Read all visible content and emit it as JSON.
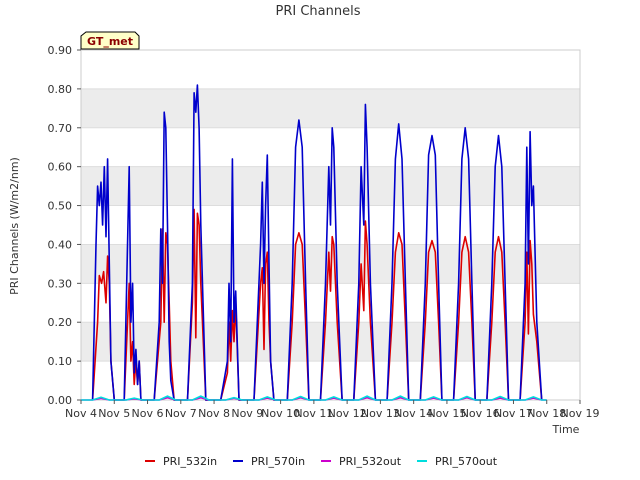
{
  "chart_data": {
    "type": "line",
    "title": "PRI Channels",
    "xlabel": "Time",
    "ylabel": "PRI Channels (W/m2/nm)",
    "badge": "GT_met",
    "ylim": [
      0,
      0.9
    ],
    "yticks": [
      0.0,
      0.1,
      0.2,
      0.3,
      0.4,
      0.5,
      0.6,
      0.7,
      0.8,
      0.9
    ],
    "ytick_labels": [
      "0.00",
      "0.10",
      "0.20",
      "0.30",
      "0.40",
      "0.50",
      "0.60",
      "0.70",
      "0.80",
      "0.90"
    ],
    "xlim": [
      4,
      19
    ],
    "xticks": [
      4,
      5,
      6,
      7,
      8,
      9,
      10,
      11,
      12,
      13,
      14,
      15,
      16,
      17,
      18,
      19
    ],
    "xtick_labels": [
      "Nov 4",
      "Nov 5",
      "Nov 6",
      "Nov 7",
      "Nov 8",
      "Nov 9",
      "Nov 10",
      "Nov 11",
      "Nov 12",
      "Nov 13",
      "Nov 14",
      "Nov 15",
      "Nov 16",
      "Nov 17",
      "Nov 18",
      "Nov 19"
    ],
    "grid": true,
    "legend_position": "bottom",
    "series": [
      {
        "name": "PRI_532in",
        "color": "#dd0000",
        "x": [
          4.35,
          4.5,
          4.55,
          4.62,
          4.68,
          4.75,
          4.8,
          4.85,
          4.9,
          5.0,
          5.3,
          5.45,
          5.5,
          5.55,
          5.6,
          5.65,
          5.7,
          5.75,
          5.8,
          6.2,
          6.4,
          6.45,
          6.5,
          6.55,
          6.6,
          6.65,
          6.7,
          6.8,
          7.2,
          7.35,
          7.4,
          7.45,
          7.5,
          7.55,
          7.6,
          7.75,
          8.2,
          8.4,
          8.45,
          8.5,
          8.55,
          8.6,
          8.65,
          8.75,
          9.2,
          9.4,
          9.45,
          9.5,
          9.55,
          9.6,
          9.65,
          9.7,
          9.8,
          10.2,
          10.35,
          10.45,
          10.55,
          10.65,
          10.75,
          10.85,
          11.2,
          11.35,
          11.45,
          11.5,
          11.55,
          11.6,
          11.7,
          11.85,
          12.2,
          12.35,
          12.42,
          12.5,
          12.55,
          12.6,
          12.7,
          12.85,
          13.2,
          13.35,
          13.45,
          13.55,
          13.65,
          13.75,
          13.85,
          14.2,
          14.35,
          14.45,
          14.55,
          14.65,
          14.75,
          14.85,
          15.2,
          15.35,
          15.45,
          15.55,
          15.65,
          15.75,
          15.85,
          16.2,
          16.35,
          16.45,
          16.55,
          16.65,
          16.75,
          16.85,
          17.2,
          17.35,
          17.4,
          17.45,
          17.5,
          17.55,
          17.6,
          17.7,
          17.85
        ],
        "y": [
          0,
          0.2,
          0.32,
          0.3,
          0.33,
          0.25,
          0.37,
          0.3,
          0.1,
          0,
          0,
          0.3,
          0.1,
          0.15,
          0.04,
          0.1,
          0.04,
          0.1,
          0,
          0,
          0.2,
          0.44,
          0.2,
          0.43,
          0.4,
          0.25,
          0.1,
          0,
          0,
          0.25,
          0.49,
          0.16,
          0.48,
          0.45,
          0.3,
          0,
          0,
          0.07,
          0.2,
          0.1,
          0.23,
          0.15,
          0.25,
          0,
          0,
          0.3,
          0.34,
          0.13,
          0.35,
          0.38,
          0.2,
          0.1,
          0,
          0,
          0.2,
          0.4,
          0.43,
          0.4,
          0.2,
          0,
          0,
          0.2,
          0.38,
          0.28,
          0.42,
          0.4,
          0.2,
          0,
          0,
          0.2,
          0.35,
          0.23,
          0.46,
          0.4,
          0.2,
          0,
          0,
          0.2,
          0.38,
          0.43,
          0.4,
          0.2,
          0,
          0,
          0.2,
          0.38,
          0.41,
          0.38,
          0.2,
          0,
          0,
          0.2,
          0.38,
          0.42,
          0.38,
          0.2,
          0,
          0,
          0.2,
          0.38,
          0.42,
          0.38,
          0.2,
          0,
          0,
          0.2,
          0.38,
          0.17,
          0.41,
          0.35,
          0.22,
          0.15,
          0
        ]
      },
      {
        "name": "PRI_570in",
        "color": "#0000cc",
        "x": [
          4.35,
          4.45,
          4.5,
          4.55,
          4.6,
          4.65,
          4.7,
          4.75,
          4.8,
          4.85,
          4.9,
          5.0,
          5.3,
          5.45,
          5.5,
          5.55,
          5.6,
          5.65,
          5.7,
          5.75,
          5.8,
          6.2,
          6.35,
          6.4,
          6.45,
          6.5,
          6.55,
          6.6,
          6.65,
          6.7,
          6.8,
          7.2,
          7.35,
          7.4,
          7.45,
          7.5,
          7.55,
          7.6,
          7.75,
          8.2,
          8.4,
          8.45,
          8.5,
          8.55,
          8.6,
          8.65,
          8.75,
          9.2,
          9.4,
          9.45,
          9.5,
          9.55,
          9.6,
          9.65,
          9.7,
          9.8,
          10.2,
          10.35,
          10.45,
          10.55,
          10.65,
          10.75,
          10.85,
          11.2,
          11.35,
          11.45,
          11.5,
          11.55,
          11.6,
          11.7,
          11.85,
          12.2,
          12.35,
          12.42,
          12.5,
          12.55,
          12.6,
          12.7,
          12.85,
          13.2,
          13.35,
          13.45,
          13.55,
          13.65,
          13.75,
          13.85,
          14.2,
          14.35,
          14.45,
          14.55,
          14.65,
          14.75,
          14.85,
          15.2,
          15.35,
          15.45,
          15.55,
          15.65,
          15.75,
          15.85,
          16.2,
          16.35,
          16.45,
          16.55,
          16.65,
          16.75,
          16.85,
          17.2,
          17.35,
          17.4,
          17.45,
          17.5,
          17.55,
          17.6,
          17.7,
          17.85
        ],
        "y": [
          0,
          0.4,
          0.55,
          0.5,
          0.56,
          0.45,
          0.6,
          0.42,
          0.62,
          0.35,
          0.1,
          0,
          0,
          0.6,
          0.2,
          0.3,
          0.07,
          0.13,
          0.04,
          0.1,
          0,
          0,
          0.2,
          0.44,
          0.3,
          0.74,
          0.7,
          0.45,
          0.15,
          0.05,
          0,
          0,
          0.3,
          0.79,
          0.74,
          0.81,
          0.7,
          0.45,
          0,
          0,
          0.1,
          0.3,
          0.15,
          0.62,
          0.2,
          0.28,
          0,
          0,
          0.4,
          0.56,
          0.3,
          0.5,
          0.63,
          0.35,
          0.1,
          0,
          0,
          0.3,
          0.65,
          0.72,
          0.65,
          0.3,
          0,
          0,
          0.3,
          0.6,
          0.45,
          0.7,
          0.65,
          0.3,
          0,
          0,
          0.3,
          0.6,
          0.45,
          0.76,
          0.65,
          0.3,
          0,
          0,
          0.3,
          0.62,
          0.71,
          0.62,
          0.3,
          0,
          0,
          0.3,
          0.63,
          0.68,
          0.63,
          0.3,
          0,
          0,
          0.3,
          0.62,
          0.7,
          0.62,
          0.3,
          0,
          0,
          0.3,
          0.6,
          0.68,
          0.6,
          0.3,
          0,
          0,
          0.3,
          0.65,
          0.35,
          0.69,
          0.5,
          0.55,
          0.2,
          0
        ]
      },
      {
        "name": "PRI_532out",
        "color": "#cc00cc",
        "x": [
          4.0,
          4.35,
          4.6,
          4.85,
          5.0,
          5.35,
          5.6,
          5.85,
          6.0,
          6.35,
          6.6,
          6.85,
          7.0,
          7.35,
          7.6,
          7.85,
          8.0,
          8.35,
          8.6,
          8.85,
          9.0,
          9.35,
          9.6,
          9.85,
          10.0,
          10.35,
          10.6,
          10.85,
          11.0,
          11.35,
          11.6,
          11.85,
          12.0,
          12.35,
          12.6,
          12.85,
          13.0,
          13.35,
          13.6,
          13.85,
          14.0,
          14.35,
          14.6,
          14.85,
          15.0,
          15.35,
          15.6,
          15.85,
          16.0,
          16.35,
          16.6,
          16.85,
          17.0,
          17.35,
          17.6,
          17.85,
          18.0
        ],
        "y": [
          0,
          0,
          0.004,
          0,
          0,
          0,
          0.003,
          0,
          0,
          0,
          0.006,
          0,
          0,
          0,
          0.006,
          0,
          0,
          0,
          0.004,
          0,
          0,
          0,
          0.005,
          0,
          0,
          0,
          0.006,
          0,
          0,
          0,
          0.005,
          0,
          0,
          0,
          0.006,
          0,
          0,
          0,
          0.006,
          0,
          0,
          0,
          0.005,
          0,
          0,
          0,
          0.006,
          0,
          0,
          0,
          0.005,
          0,
          0,
          0,
          0.005,
          0,
          0
        ]
      },
      {
        "name": "PRI_570out",
        "color": "#00dddd",
        "x": [
          4.0,
          4.35,
          4.6,
          4.85,
          5.0,
          5.35,
          5.6,
          5.85,
          6.0,
          6.35,
          6.6,
          6.85,
          7.0,
          7.35,
          7.6,
          7.85,
          8.0,
          8.35,
          8.6,
          8.85,
          9.0,
          9.35,
          9.6,
          9.85,
          10.0,
          10.35,
          10.6,
          10.85,
          11.0,
          11.35,
          11.6,
          11.85,
          12.0,
          12.35,
          12.6,
          12.85,
          13.0,
          13.35,
          13.6,
          13.85,
          14.0,
          14.35,
          14.6,
          14.85,
          15.0,
          15.35,
          15.6,
          15.85,
          16.0,
          16.35,
          16.6,
          16.85,
          17.0,
          17.35,
          17.6,
          17.85,
          18.0
        ],
        "y": [
          0,
          0,
          0.007,
          0,
          0,
          0,
          0.005,
          0,
          0,
          0,
          0.01,
          0,
          0,
          0,
          0.01,
          0,
          0,
          0,
          0.006,
          0,
          0,
          0,
          0.008,
          0,
          0,
          0,
          0.009,
          0,
          0,
          0,
          0.008,
          0,
          0,
          0,
          0.01,
          0,
          0,
          0,
          0.01,
          0,
          0,
          0,
          0.008,
          0,
          0,
          0,
          0.009,
          0,
          0,
          0,
          0.009,
          0,
          0,
          0,
          0.008,
          0,
          0
        ]
      }
    ]
  }
}
